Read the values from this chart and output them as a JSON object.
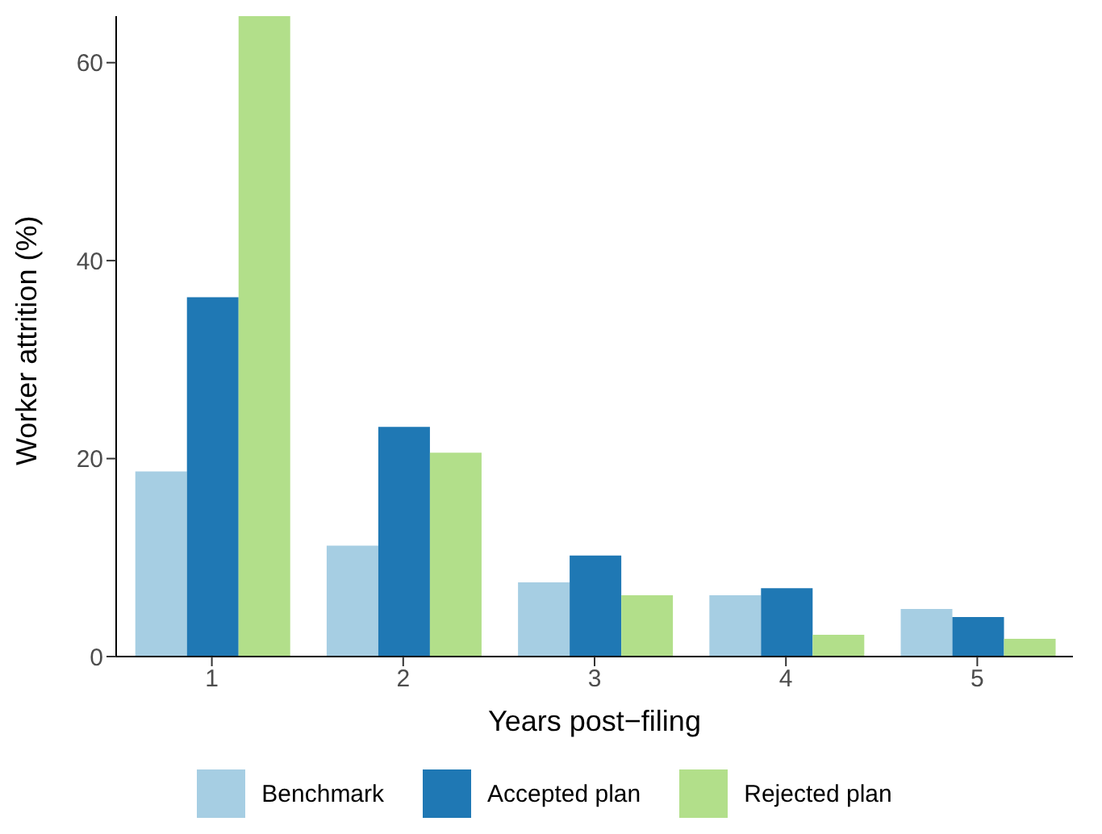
{
  "chart_data": {
    "type": "bar",
    "xlabel": "Years post−filing",
    "ylabel": "Worker attrition (%)",
    "categories": [
      "1",
      "2",
      "3",
      "4",
      "5"
    ],
    "series": [
      {
        "name": "Benchmark",
        "color": "#a6cee3",
        "values": [
          18.7,
          11.2,
          7.5,
          6.2,
          4.8
        ]
      },
      {
        "name": "Accepted plan",
        "color": "#1f78b4",
        "values": [
          36.3,
          23.2,
          10.2,
          6.9,
          4.0
        ]
      },
      {
        "name": "Rejected plan",
        "color": "#b2df8a",
        "values": [
          64.7,
          20.6,
          6.2,
          2.2,
          1.8
        ]
      }
    ],
    "ylim": [
      0,
      64.7
    ],
    "yticks": [
      0,
      20,
      40,
      60
    ],
    "legend": "bottom"
  }
}
